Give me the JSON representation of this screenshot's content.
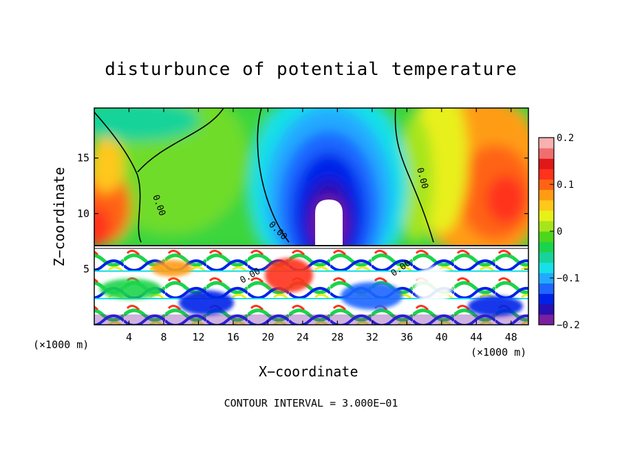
{
  "chart_data": {
    "type": "heatmap",
    "title": "disturbunce of potential temperature",
    "xlabel": "X−coordinate",
    "ylabel": "Z−coordinate",
    "x_unit_left": "(×1000 m)",
    "x_unit_right": "(×1000 m)",
    "contour_interval_text": "CONTOUR INTERVAL = 3.000E−01",
    "contour_labels": [
      "0.00",
      "0.00",
      "0.00",
      "0.00",
      "0.00"
    ],
    "xlim": [
      0,
      50
    ],
    "ylim": [
      0,
      19.5
    ],
    "x_ticks": [
      4,
      8,
      12,
      16,
      20,
      24,
      28,
      32,
      36,
      40,
      44,
      48
    ],
    "x_tick_labels": [
      "4",
      "8",
      "12",
      "16",
      "20",
      "24",
      "28",
      "32",
      "36",
      "40",
      "44",
      "48"
    ],
    "y_ticks": [
      5,
      10,
      15
    ],
    "y_tick_labels": [
      "5",
      "10",
      "15"
    ],
    "colorbar": {
      "range": [
        -0.2,
        0.2
      ],
      "ticks": [
        -0.2,
        -0.1,
        0,
        0.1,
        0.2
      ],
      "tick_labels": [
        "−0.2",
        "−0.1",
        "0",
        "0.1",
        "0.2"
      ],
      "colors": [
        "#7a1fa0",
        "#2a0fb4",
        "#0022e8",
        "#1f66ff",
        "#22aaff",
        "#17e0e8",
        "#18d39a",
        "#1bd44c",
        "#4ed61c",
        "#a6e51c",
        "#e8f01a",
        "#ffc81a",
        "#ff9c14",
        "#ff6414",
        "#ff321c",
        "#e01818",
        "#f06e6e",
        "#f8b0b0"
      ]
    },
    "features": [
      {
        "name": "warm region top-left",
        "x": [
          0,
          4
        ],
        "z": [
          7.5,
          17
        ],
        "value": 0.12
      },
      {
        "name": "cool region centre",
        "x": [
          21,
          34
        ],
        "z": [
          7.5,
          19.5
        ],
        "value": -0.15
      },
      {
        "name": "warm region right",
        "x": [
          40,
          50
        ],
        "z": [
          7.5,
          19.5
        ],
        "value": 0.13
      },
      {
        "name": "turbulent layer",
        "x": [
          0,
          50
        ],
        "z": [
          0,
          7.3
        ],
        "value": 0.0
      }
    ],
    "grid": false,
    "legend": "right"
  }
}
